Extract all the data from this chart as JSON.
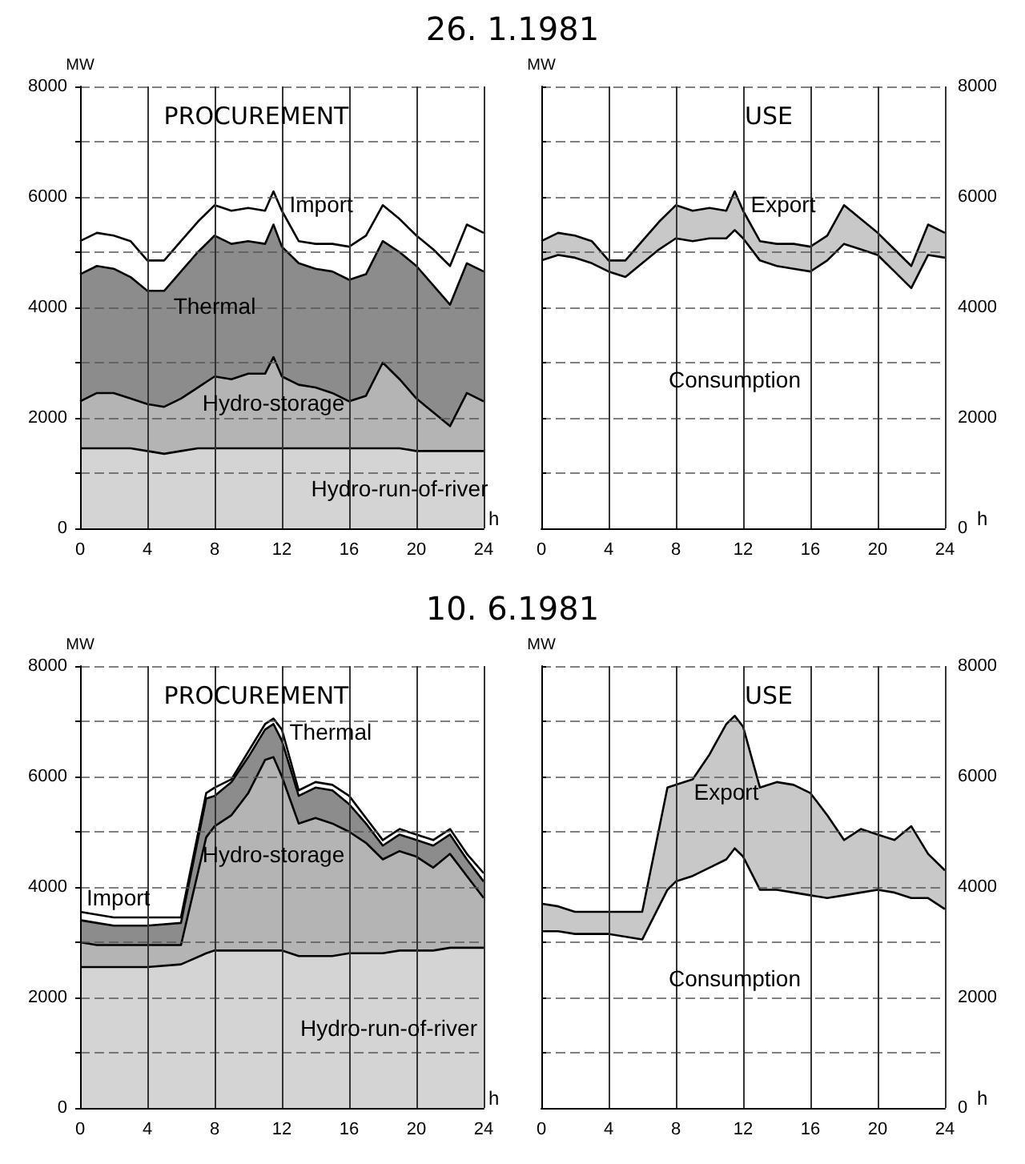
{
  "chart_data": [
    {
      "type": "area",
      "title": "26. 1.1981",
      "subtitle": "PROCUREMENT",
      "xlabel": "h",
      "ylabel": "MW",
      "stacked": true,
      "grid": true,
      "marker": "none",
      "x": [
        0,
        1,
        2,
        3,
        4,
        5,
        6,
        7,
        8,
        9,
        10,
        11,
        11.5,
        12,
        13,
        14,
        15,
        16,
        17,
        18,
        19,
        20,
        21,
        22,
        23,
        24
      ],
      "series": [
        {
          "name": "Hydro-run-of-river",
          "color": "#d4d4d4",
          "values": [
            1450,
            1450,
            1450,
            1450,
            1400,
            1350,
            1400,
            1450,
            1450,
            1450,
            1450,
            1450,
            1450,
            1450,
            1450,
            1450,
            1450,
            1450,
            1450,
            1450,
            1450,
            1400,
            1400,
            1400,
            1400,
            1400
          ]
        },
        {
          "name": "Hydro-storage",
          "color": "#b4b4b4",
          "values": [
            850,
            1000,
            1000,
            900,
            850,
            850,
            950,
            1100,
            1300,
            1250,
            1350,
            1350,
            1650,
            1300,
            1150,
            1100,
            1000,
            850,
            950,
            1550,
            1250,
            950,
            700,
            450,
            1050,
            900
          ]
        },
        {
          "name": "Thermal",
          "color": "#8c8c8c",
          "values": [
            2300,
            2300,
            2250,
            2200,
            2050,
            2100,
            2300,
            2450,
            2550,
            2450,
            2400,
            2350,
            2400,
            2350,
            2200,
            2150,
            2200,
            2200,
            2200,
            2200,
            2300,
            2400,
            2300,
            2200,
            2350,
            2350
          ]
        },
        {
          "name": "Import",
          "color": "#ffffff",
          "values": [
            600,
            600,
            600,
            650,
            550,
            550,
            550,
            550,
            550,
            600,
            600,
            600,
            600,
            650,
            400,
            450,
            500,
            600,
            700,
            650,
            600,
            550,
            650,
            700,
            700,
            700
          ]
        }
      ],
      "xlim": [
        0,
        24
      ],
      "xticks": [
        0,
        4,
        8,
        12,
        16,
        20,
        24
      ],
      "ylim": [
        0,
        8000
      ],
      "yticks": [
        0,
        {
          "value": 1000,
          "label": null
        },
        2000,
        {
          "value": 3000,
          "label": null
        },
        4000,
        {
          "value": 5000,
          "label": null
        },
        6000,
        {
          "value": 7000,
          "label": null
        },
        8000
      ]
    },
    {
      "type": "area",
      "subtitle": "USE",
      "xlabel": "h",
      "y2label": "MW",
      "stacked": true,
      "grid": true,
      "marker": "none",
      "x": [
        0,
        1,
        2,
        3,
        4,
        5,
        6,
        7,
        8,
        9,
        10,
        11,
        11.5,
        12,
        13,
        14,
        15,
        16,
        17,
        18,
        19,
        20,
        21,
        22,
        23,
        24
      ],
      "series": [
        {
          "name": "Consumption",
          "color": "#ffffff",
          "axis": "y2",
          "values": [
            4850,
            4950,
            4900,
            4800,
            4650,
            4550,
            4800,
            5050,
            5250,
            5200,
            5250,
            5250,
            5400,
            5250,
            4850,
            4750,
            4700,
            4650,
            4850,
            5150,
            5050,
            4950,
            4650,
            4350,
            4950,
            4900
          ]
        },
        {
          "name": "Export",
          "color": "#c8c8c8",
          "axis": "y2",
          "values": [
            350,
            400,
            400,
            400,
            200,
            300,
            400,
            500,
            600,
            550,
            550,
            500,
            700,
            500,
            350,
            400,
            450,
            450,
            450,
            700,
            550,
            400,
            400,
            400,
            550,
            450
          ]
        }
      ],
      "xlim": [
        0,
        24
      ],
      "xticks": [
        0,
        4,
        8,
        12,
        16,
        20,
        24
      ],
      "y2lim": [
        0,
        8000
      ],
      "y2ticks": [
        0,
        {
          "value": 1000,
          "label": null
        },
        2000,
        {
          "value": 3000,
          "label": null
        },
        4000,
        {
          "value": 5000,
          "label": null
        },
        6000,
        {
          "value": 7000,
          "label": null
        },
        8000
      ]
    },
    {
      "type": "area",
      "title": "10. 6.1981",
      "subtitle": "PROCUREMENT",
      "xlabel": "h",
      "ylabel": "MW",
      "stacked": true,
      "grid": true,
      "marker": "none",
      "x": [
        0,
        1,
        2,
        4,
        6,
        7.5,
        8,
        9,
        10,
        11,
        11.5,
        12,
        13,
        14,
        15,
        16,
        17,
        18,
        19,
        20,
        21,
        22,
        23,
        24
      ],
      "series": [
        {
          "name": "Hydro-run-of-river",
          "color": "#d4d4d4",
          "values": [
            2550,
            2550,
            2550,
            2550,
            2600,
            2800,
            2850,
            2850,
            2850,
            2850,
            2850,
            2850,
            2750,
            2750,
            2750,
            2800,
            2800,
            2800,
            2850,
            2850,
            2850,
            2900,
            2900,
            2900
          ]
        },
        {
          "name": "Hydro-storage",
          "color": "#b4b4b4",
          "values": [
            450,
            400,
            400,
            400,
            350,
            2100,
            2250,
            2450,
            2850,
            3450,
            3500,
            3150,
            2400,
            2500,
            2400,
            2200,
            2000,
            1700,
            1800,
            1700,
            1500,
            1700,
            1300,
            900
          ]
        },
        {
          "name": "Thermal",
          "color": "#8c8c8c",
          "values": [
            400,
            400,
            350,
            350,
            400,
            700,
            550,
            600,
            650,
            550,
            600,
            650,
            500,
            550,
            600,
            500,
            350,
            250,
            300,
            300,
            400,
            350,
            300,
            300
          ]
        },
        {
          "name": "Import",
          "color": "#ffffff",
          "values": [
            150,
            150,
            150,
            150,
            100,
            100,
            150,
            50,
            100,
            100,
            100,
            200,
            100,
            100,
            100,
            150,
            100,
            100,
            100,
            100,
            100,
            100,
            100,
            150
          ]
        }
      ],
      "xlim": [
        0,
        24
      ],
      "xticks": [
        0,
        4,
        8,
        12,
        16,
        20,
        24
      ],
      "ylim": [
        0,
        8000
      ],
      "yticks": [
        0,
        {
          "value": 1000,
          "label": null
        },
        2000,
        {
          "value": 3000,
          "label": null
        },
        4000,
        {
          "value": 5000,
          "label": null
        },
        6000,
        {
          "value": 7000,
          "label": null
        },
        8000
      ]
    },
    {
      "type": "area",
      "subtitle": "USE",
      "xlabel": "h",
      "y2label": "MW",
      "stacked": true,
      "grid": true,
      "marker": "none",
      "x": [
        0,
        1,
        2,
        4,
        6,
        7.5,
        8,
        9,
        10,
        11,
        11.5,
        12,
        13,
        14,
        15,
        16,
        17,
        18,
        19,
        20,
        21,
        22,
        23,
        24
      ],
      "series": [
        {
          "name": "Consumption",
          "color": "#ffffff",
          "axis": "y2",
          "values": [
            3200,
            3200,
            3150,
            3150,
            3050,
            3950,
            4100,
            4200,
            4350,
            4500,
            4700,
            4550,
            3950,
            3950,
            3900,
            3850,
            3800,
            3850,
            3900,
            3950,
            3900,
            3800,
            3800,
            3600
          ]
        },
        {
          "name": "Export",
          "color": "#c8c8c8",
          "axis": "y2",
          "values": [
            500,
            450,
            400,
            400,
            500,
            1850,
            1750,
            1750,
            2050,
            2450,
            2400,
            2350,
            1850,
            1950,
            1950,
            1850,
            1500,
            1000,
            1150,
            1000,
            950,
            1300,
            800,
            700
          ]
        }
      ],
      "xlim": [
        0,
        24
      ],
      "xticks": [
        0,
        4,
        8,
        12,
        16,
        20,
        24
      ],
      "y2lim": [
        0,
        8000
      ],
      "y2ticks": [
        0,
        {
          "value": 1000,
          "label": null
        },
        2000,
        {
          "value": 3000,
          "label": null
        },
        4000,
        {
          "value": 5000,
          "label": null
        },
        6000,
        {
          "value": 7000,
          "label": null
        },
        8000
      ]
    }
  ]
}
